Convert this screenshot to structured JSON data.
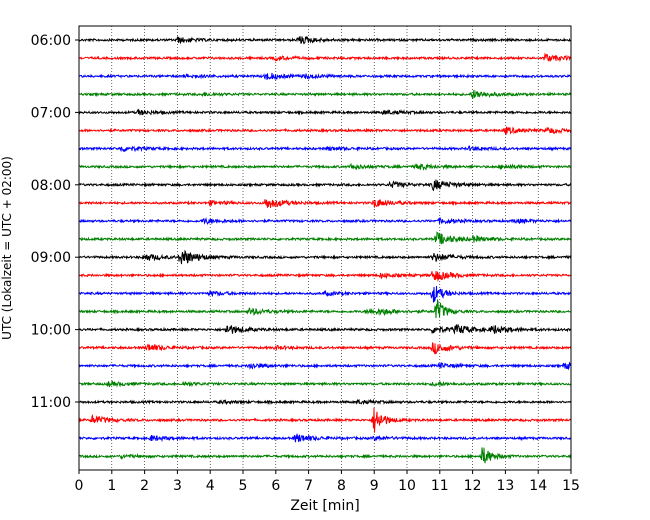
{
  "chart_data": {
    "type": "line",
    "title": "",
    "xlabel": "Zeit  [min]",
    "ylabel": "UTC (Lokalzeit = UTC + 02:00)",
    "xlim": [
      0,
      15
    ],
    "x_ticks": [
      "0",
      "1",
      "2",
      "3",
      "4",
      "5",
      "6",
      "7",
      "8",
      "9",
      "10",
      "11",
      "12",
      "13",
      "14",
      "15"
    ],
    "y_ticks": [
      "06:00",
      "07:00",
      "08:00",
      "09:00",
      "10:00",
      "11:00"
    ],
    "grid": "vertical dotted",
    "trace_colors": [
      "#000000",
      "#ff0000",
      "#0000ff",
      "#008000"
    ],
    "traces": [
      {
        "start": "06:00",
        "events": [
          [
            3.0,
            0.35
          ],
          [
            6.7,
            0.55
          ]
        ]
      },
      {
        "start": "06:15",
        "events": [
          [
            14.2,
            0.55
          ],
          [
            6.0,
            0.25
          ]
        ]
      },
      {
        "start": "06:30",
        "events": [
          [
            5.7,
            0.5
          ],
          [
            3.3,
            0.2
          ],
          [
            6.9,
            0.25
          ]
        ]
      },
      {
        "start": "06:45",
        "events": [
          [
            12.0,
            0.6
          ],
          [
            3.8,
            0.2
          ]
        ]
      },
      {
        "start": "07:00",
        "events": [
          [
            1.8,
            0.3
          ],
          [
            9.3,
            0.25
          ]
        ]
      },
      {
        "start": "07:15",
        "events": [
          [
            13.0,
            0.45
          ],
          [
            14.3,
            0.35
          ]
        ]
      },
      {
        "start": "07:30",
        "events": [
          [
            1.3,
            0.4
          ],
          [
            7.6,
            0.25
          ],
          [
            11.9,
            0.25
          ]
        ]
      },
      {
        "start": "07:45",
        "events": [
          [
            8.3,
            0.35
          ],
          [
            10.3,
            0.4
          ],
          [
            12.9,
            0.25
          ]
        ]
      },
      {
        "start": "08:00",
        "events": [
          [
            10.8,
            0.75
          ],
          [
            9.5,
            0.4
          ]
        ]
      },
      {
        "start": "08:15",
        "events": [
          [
            5.7,
            0.8
          ],
          [
            9.0,
            0.6
          ],
          [
            4.0,
            0.25
          ]
        ]
      },
      {
        "start": "08:30",
        "events": [
          [
            3.8,
            0.35
          ],
          [
            11.0,
            0.35
          ],
          [
            13.3,
            0.25
          ]
        ]
      },
      {
        "start": "08:45",
        "events": [
          [
            10.9,
            0.9
          ],
          [
            12.0,
            0.35
          ]
        ]
      },
      {
        "start": "09:00",
        "events": [
          [
            3.1,
            1.15
          ],
          [
            2.0,
            0.5
          ],
          [
            10.8,
            0.6
          ]
        ]
      },
      {
        "start": "09:15",
        "events": [
          [
            10.8,
            0.8
          ],
          [
            9.2,
            0.3
          ]
        ]
      },
      {
        "start": "09:30",
        "events": [
          [
            10.8,
            1.4
          ],
          [
            4.0,
            0.25
          ],
          [
            7.5,
            0.2
          ]
        ]
      },
      {
        "start": "09:45",
        "events": [
          [
            10.9,
            1.7
          ],
          [
            5.2,
            0.45
          ],
          [
            8.8,
            0.35
          ],
          [
            9.2,
            0.3
          ]
        ]
      },
      {
        "start": "10:00",
        "events": [
          [
            4.5,
            0.7
          ],
          [
            11.5,
            0.6
          ],
          [
            12.6,
            0.55
          ],
          [
            10.8,
            0.5
          ]
        ]
      },
      {
        "start": "10:15",
        "events": [
          [
            2.1,
            0.5
          ],
          [
            10.8,
            0.8
          ],
          [
            6.0,
            0.2
          ]
        ]
      },
      {
        "start": "10:30",
        "events": [
          [
            5.2,
            0.4
          ],
          [
            14.8,
            0.4
          ],
          [
            11.0,
            0.3
          ]
        ]
      },
      {
        "start": "10:45",
        "events": [
          [
            0.9,
            0.3
          ],
          [
            3.2,
            0.2
          ],
          [
            10.8,
            0.2
          ]
        ]
      },
      {
        "start": "11:00",
        "events": [
          [
            8.5,
            0.2
          ],
          [
            4.3,
            0.15
          ]
        ]
      },
      {
        "start": "11:15",
        "events": [
          [
            9.0,
            2.0
          ],
          [
            0.4,
            0.55
          ]
        ]
      },
      {
        "start": "11:30",
        "events": [
          [
            6.6,
            0.6
          ],
          [
            2.2,
            0.35
          ],
          [
            9.0,
            0.25
          ]
        ]
      },
      {
        "start": "11:45",
        "events": [
          [
            12.3,
            1.4
          ],
          [
            1.3,
            0.2
          ]
        ]
      }
    ]
  }
}
